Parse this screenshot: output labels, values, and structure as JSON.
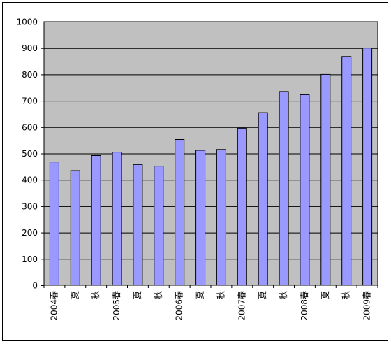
{
  "chart_data": {
    "type": "bar",
    "title": "",
    "xlabel": "",
    "ylabel": "",
    "ylim": [
      0,
      1000
    ],
    "yticks": [
      0,
      100,
      200,
      300,
      400,
      500,
      600,
      700,
      800,
      900,
      1000
    ],
    "grid": true,
    "legend": "none",
    "categories": [
      "2004春",
      "夏",
      "秋",
      "2005春",
      "夏",
      "秋",
      "2006春",
      "夏",
      "秋",
      "2007春",
      "夏",
      "秋",
      "2008春",
      "夏",
      "秋",
      "2009春"
    ],
    "series": [
      {
        "values": [
          468,
          435,
          492,
          505,
          458,
          452,
          553,
          512,
          515,
          596,
          655,
          735,
          723,
          800,
          868,
          900
        ],
        "color": "#9999ff"
      }
    ],
    "colors": {
      "plot_background": "#c0c0c0",
      "bar_fill": "#9999ff",
      "bar_stroke": "#000000",
      "gridline": "#000000",
      "frame": "#000000"
    }
  }
}
